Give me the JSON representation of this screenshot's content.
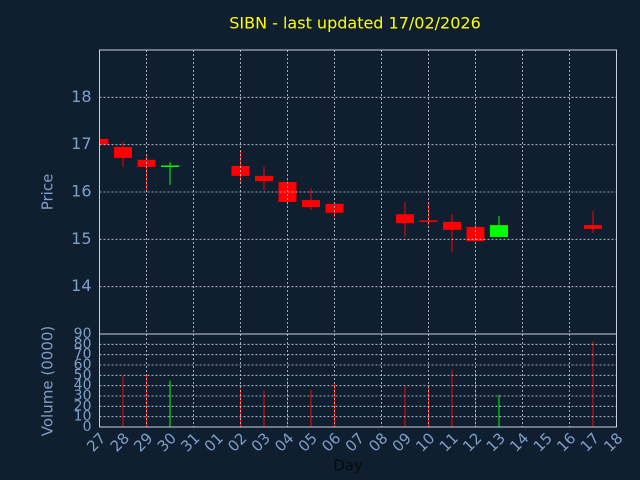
{
  "chart_data": [
    {
      "type": "candlestick",
      "title": "SIBN - last updated 17/02/2026",
      "ylabel": "Price",
      "x": [
        "27",
        "28",
        "29",
        "30",
        "02",
        "03",
        "04",
        "05",
        "06",
        "09",
        "10",
        "11",
        "12",
        "13",
        "17"
      ],
      "open": [
        17.12,
        16.95,
        16.68,
        16.54,
        16.55,
        16.34,
        16.21,
        15.83,
        15.75,
        15.53,
        15.4,
        15.37,
        15.26,
        15.05,
        15.3
      ],
      "high": [
        17.12,
        17.06,
        16.78,
        16.63,
        16.89,
        16.53,
        16.25,
        16.08,
        15.77,
        15.79,
        15.79,
        15.53,
        15.51,
        15.49,
        15.6
      ],
      "low": [
        17.0,
        16.53,
        16.04,
        16.15,
        16.19,
        16.04,
        15.73,
        15.62,
        15.47,
        15.05,
        15.3,
        14.73,
        14.96,
        15.05,
        15.13
      ],
      "close": [
        17.0,
        16.72,
        16.53,
        16.56,
        16.34,
        16.23,
        15.79,
        15.68,
        15.56,
        15.34,
        15.38,
        15.2,
        14.96,
        15.3,
        15.22
      ],
      "up_color": "#00ff00",
      "down_color": "#ff0000",
      "ylim": [
        13,
        19
      ],
      "yticks": [
        14,
        15,
        16,
        17,
        18
      ],
      "grid": true
    },
    {
      "type": "bar",
      "ylabel": "Volume (0000)",
      "xlabel": "Day",
      "categories": [
        "27",
        "28",
        "29",
        "30",
        "31",
        "01",
        "02",
        "03",
        "04",
        "05",
        "06",
        "07",
        "08",
        "09",
        "10",
        "11",
        "12",
        "13",
        "14",
        "15",
        "16",
        "17",
        "18"
      ],
      "x": [
        "27",
        "28",
        "29",
        "30",
        "02",
        "03",
        "04",
        "05",
        "06",
        "09",
        "10",
        "11",
        "12",
        "13",
        "17"
      ],
      "values": [
        null,
        49,
        51,
        45,
        37,
        35,
        46,
        36,
        42,
        40,
        38,
        55,
        54,
        31,
        83
      ],
      "up": [
        false,
        false,
        false,
        true,
        false,
        false,
        false,
        false,
        false,
        false,
        false,
        false,
        false,
        true,
        false
      ],
      "up_color": "#00ff00",
      "down_color": "#ff0000",
      "ylim": [
        0,
        90
      ],
      "yticks": [
        0,
        10,
        20,
        30,
        40,
        50,
        60,
        70,
        80,
        90
      ],
      "grid": true
    }
  ]
}
